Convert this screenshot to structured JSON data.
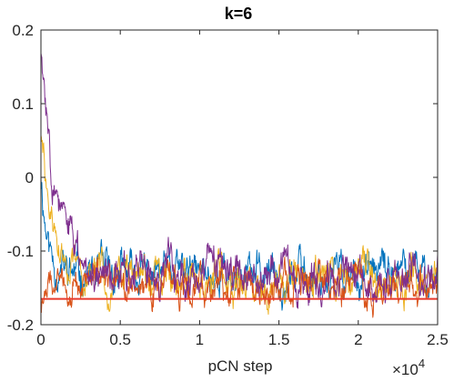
{
  "chart_data": {
    "type": "line",
    "title": "k=6",
    "xlabel": "pCN step",
    "ylabel": "",
    "x_multiplier_label": "×10",
    "x_multiplier_exponent": "4",
    "xlim": [
      0,
      2.5
    ],
    "ylim": [
      -0.2,
      0.2
    ],
    "x_ticks": [
      0,
      0.5,
      1,
      1.5,
      2,
      2.5
    ],
    "x_tick_labels": [
      "0",
      "0.5",
      "1",
      "1.5",
      "2",
      "2.5"
    ],
    "y_ticks": [
      -0.2,
      -0.1,
      0,
      0.1,
      0.2
    ],
    "y_tick_labels": [
      "-0.2",
      "-0.1",
      "0",
      "0.1",
      "0.2"
    ],
    "grid": false,
    "reference_line": {
      "y": -0.165,
      "color": "#e8392c"
    },
    "series": [
      {
        "color": "#0072bd",
        "start": 0.01,
        "level": -0.131,
        "decay": 0.04,
        "noise": 0.014,
        "seed": 11
      },
      {
        "color": "#edb120",
        "start": 0.06,
        "level": -0.136,
        "decay": 0.07,
        "noise": 0.014,
        "seed": 29
      },
      {
        "color": "#d95319",
        "start": -0.165,
        "level": -0.145,
        "decay": 0.05,
        "noise": 0.012,
        "seed": 47
      },
      {
        "color": "#7e2f8e",
        "start": 0.172,
        "level": -0.132,
        "decay": 0.1,
        "noise": 0.014,
        "seed": 83
      }
    ]
  }
}
